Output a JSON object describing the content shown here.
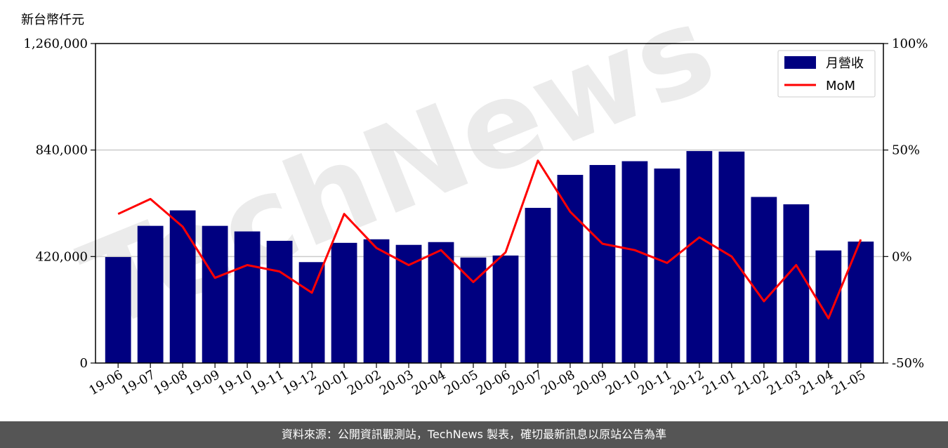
{
  "y_unit_label": "新台幣仟元",
  "footer_text": "資料來源：公開資訊觀測站，TechNews 製表，確切最新訊息以原站公告為準",
  "watermark_text": "TechNews",
  "colors": {
    "bar": "#000080",
    "line": "#ff0000",
    "footer_bg": "#555555",
    "grid": "#cccccc"
  },
  "chart_data": {
    "type": "bar",
    "categories": [
      "19-06",
      "19-07",
      "19-08",
      "19-09",
      "19-10",
      "19-11",
      "19-12",
      "20-01",
      "20-02",
      "20-03",
      "20-04",
      "20-05",
      "20-06",
      "20-07",
      "20-08",
      "20-09",
      "20-10",
      "20-11",
      "20-12",
      "21-01",
      "21-02",
      "21-03",
      "21-04",
      "21-05"
    ],
    "series": [
      {
        "name": "月營收",
        "type": "bar",
        "axis": "left",
        "values": [
          418000,
          541000,
          602000,
          541000,
          519000,
          482000,
          398000,
          474000,
          488000,
          466000,
          477000,
          416000,
          424000,
          612000,
          742000,
          781000,
          796000,
          767000,
          836000,
          834000,
          655000,
          626000,
          444000,
          479000
        ]
      },
      {
        "name": "MoM",
        "type": "line",
        "axis": "right",
        "values": [
          20,
          27,
          14,
          -10,
          -4,
          -7,
          -17,
          20,
          4,
          -4,
          3,
          -12,
          2,
          45,
          21,
          6,
          3,
          -3,
          9,
          0,
          -21,
          -4,
          -29,
          8
        ]
      }
    ],
    "y_left": {
      "lim": [
        0,
        1260000
      ],
      "ticks": [
        0,
        420000,
        840000,
        1260000
      ],
      "tick_labels": [
        "0",
        "420,000",
        "840,000",
        "1,260,000"
      ]
    },
    "y_right": {
      "lim": [
        -50,
        100
      ],
      "ticks": [
        -50,
        0,
        50,
        100
      ],
      "tick_labels": [
        "-50%",
        "0%",
        "50%",
        "100%"
      ]
    },
    "grid": "horizontal",
    "legend": {
      "position": "top-right",
      "entries": [
        "月營收",
        "MoM"
      ]
    }
  }
}
